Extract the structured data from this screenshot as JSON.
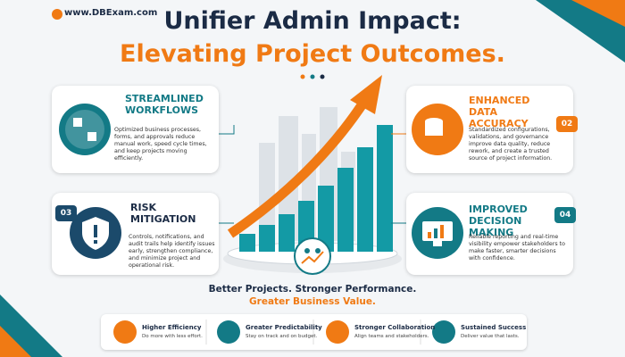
{
  "brand": "www.DBExam.com",
  "header": {
    "title": "Unifier Admin Impact:",
    "subtitle": "Elevating Project Outcomes."
  },
  "cards": [
    {
      "title": "STREAMLINED WORKFLOWS",
      "body": "Optimized business processes, forms, and approvals reduce manual work, speed cycle times, and keep projects moving efficiently."
    },
    {
      "number": "02",
      "title": "ENHANCED DATA ACCURACY",
      "body": "Standardized configurations, validations, and governance improve data quality, reduce rework, and create a trusted source of project information."
    },
    {
      "number": "03",
      "title": "RISK MITIGATION",
      "body": "Controls, notifications, and audit trails help identify issues early, strengthen compliance, and minimize project and operational risk."
    },
    {
      "number": "04",
      "title": "IMPROVED DECISION MAKING",
      "body": "Reliable reporting and real-time visibility empower stakeholders to make faster, smarter decisions with confidence."
    }
  ],
  "tagline": {
    "line1": "Better Projects. Stronger Performance.",
    "line2": "Greater Business Value."
  },
  "benefits": [
    {
      "title": "Higher Efficiency",
      "text": "Do more with less effort."
    },
    {
      "title": "Greater Predictability",
      "text": "Stay on track and on budget."
    },
    {
      "title": "Stronger Collaboration",
      "text": "Align teams and stakeholders."
    },
    {
      "title": "Sustained Success",
      "text": "Deliver value that lasts."
    }
  ]
}
